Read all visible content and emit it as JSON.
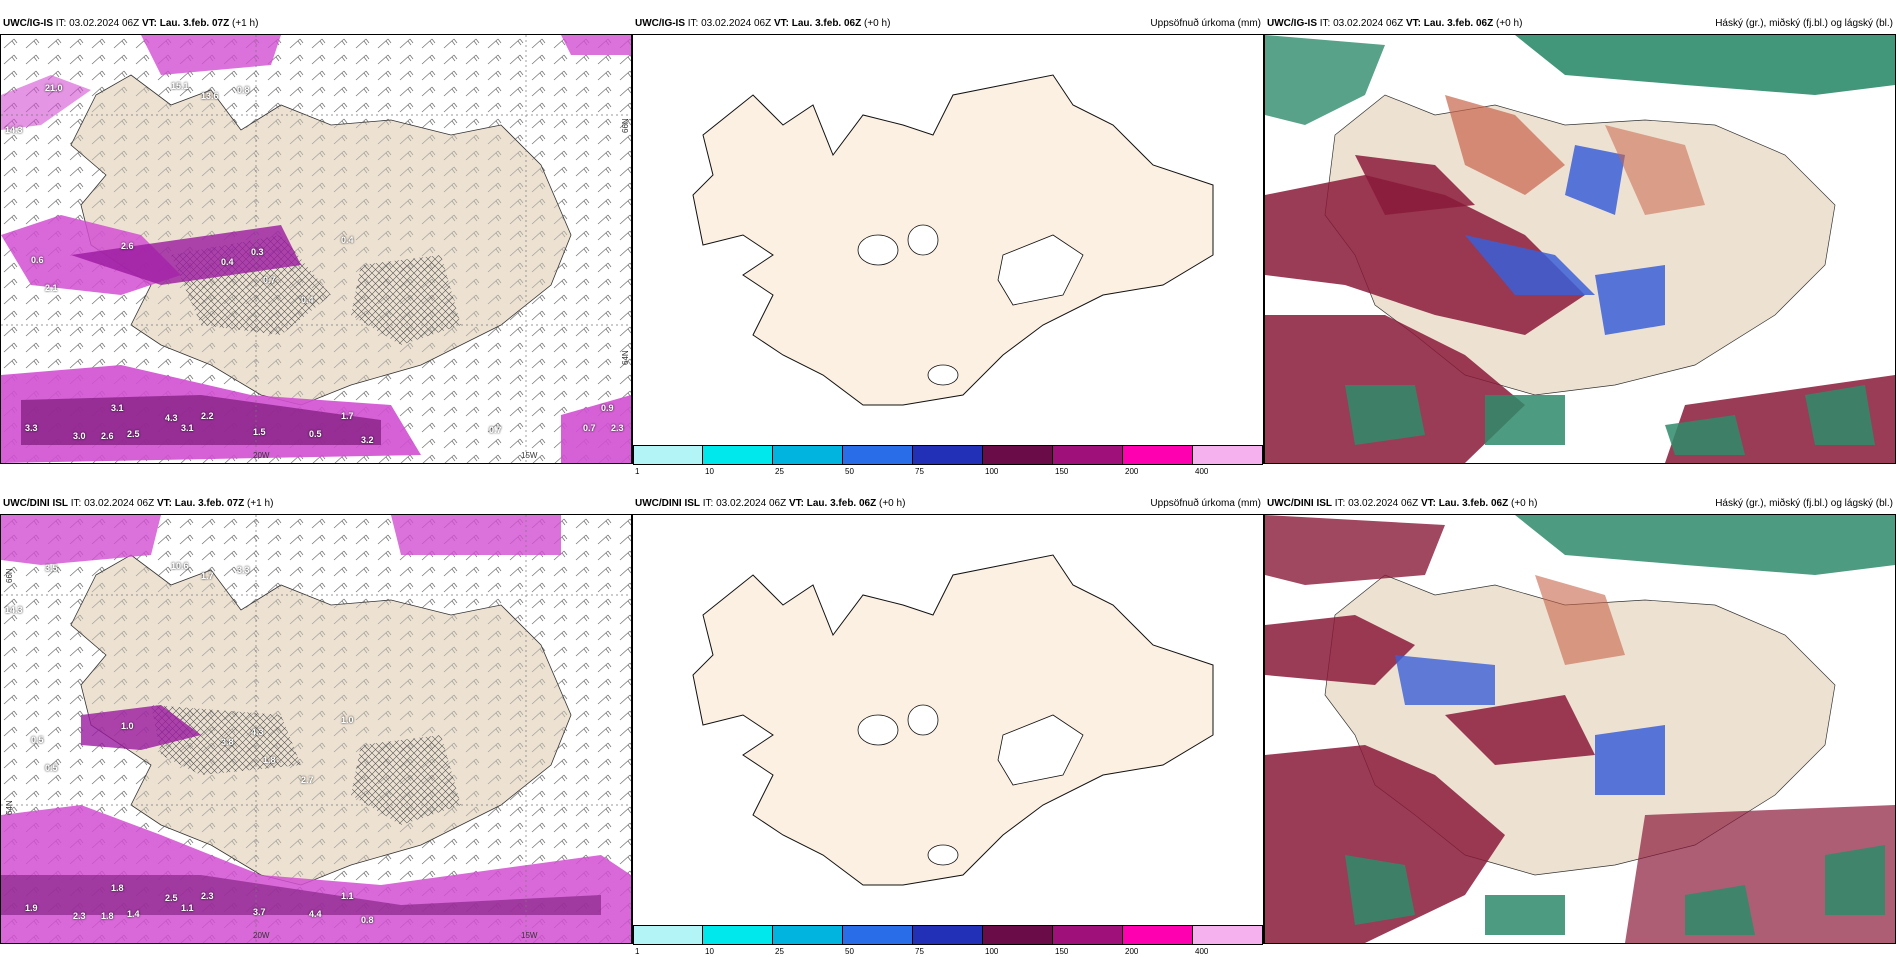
{
  "rows": [
    {
      "left": {
        "model": "UWC/IG-IS",
        "it": "IT: 03.02.2024 06Z",
        "vt_label": "VT:",
        "vt": "Lau. 3.feb. 07Z",
        "lead": "(+1 h)"
      },
      "middle": {
        "model": "UWC/IG-IS",
        "it": "IT: 03.02.2024 06Z",
        "vt_label": "VT:",
        "vt": "Lau. 3.feb. 06Z",
        "lead": "(+0 h)",
        "title_right": "Uppsöfnuð úrkoma (mm)"
      },
      "right": {
        "model": "UWC/IG-IS",
        "it": "IT: 03.02.2024 06Z",
        "vt_label": "VT:",
        "vt": "Lau. 3.feb. 06Z",
        "lead": "(+0 h)",
        "title_right": "Háský (gr.), miðský (fj.bl.) og lágský (bl.)"
      },
      "precip_labels": [
        "21.0",
        "14.3",
        "15.1",
        "13.6",
        "0.8",
        "2.1",
        "0.6",
        "2.6",
        "0.4",
        "0.3",
        "0.4",
        "0.7",
        "0.4",
        "3.1",
        "3.3",
        "3.0",
        "2.6",
        "2.5",
        "4.3",
        "3.1",
        "2.2",
        "1.5",
        "0.5",
        "1.7",
        "3.2",
        "0.7",
        "0.9",
        "0.7",
        "2.3"
      ],
      "lon_labels": [
        "20W",
        "15W"
      ],
      "lat_labels": [
        "66N",
        "64N"
      ]
    },
    {
      "left": {
        "model": "UWC/DINI ISL",
        "it": "IT: 03.02.2024 06Z",
        "vt_label": "VT:",
        "vt": "Lau. 3.feb. 07Z",
        "lead": "(+1 h)"
      },
      "middle": {
        "model": "UWC/DINI ISL",
        "it": "IT: 03.02.2024 06Z",
        "vt_label": "VT:",
        "vt": "Lau. 3.feb. 06Z",
        "lead": "(+0 h)",
        "title_right": "Uppsöfnuð úrkoma (mm)"
      },
      "right": {
        "model": "UWC/DINI ISL",
        "it": "IT: 03.02.2024 06Z",
        "vt_label": "VT:",
        "vt": "Lau. 3.feb. 06Z",
        "lead": "(+0 h)",
        "title_right": "Háský (gr.), miðský (fj.bl.) og lágský (bl.)"
      },
      "precip_labels": [
        "3.5",
        "14.3",
        "10.6",
        "1.7",
        "3.3",
        "0.5",
        "0.5",
        "1.0",
        "2.7",
        "4.3",
        "3.8",
        "1.8",
        "1.0",
        "1.8",
        "1.9",
        "2.3",
        "1.8",
        "1.4",
        "2.5",
        "1.1",
        "2.3",
        "3.7",
        "4.4",
        "1.1",
        "0.8"
      ],
      "lon_labels": [
        "20W",
        "15W"
      ],
      "lat_labels": [
        "66N",
        "64N"
      ]
    }
  ],
  "legend": {
    "colors": [
      "#b3f5f7",
      "#00e8ec",
      "#00b4e0",
      "#2a6de8",
      "#2230b8",
      "#6a0c48",
      "#a0107a",
      "#ff00b0",
      "#f5b0ee"
    ],
    "ticks": [
      "1",
      "10",
      "25",
      "50",
      "75",
      "100",
      "150",
      "200",
      "400"
    ]
  },
  "colors": {
    "land": "#ede2d2",
    "land_mid": "#fcf0e3",
    "precip": "#cc33cc",
    "precip_dark": "#7a1a7a",
    "cloud_high": "#2e8b6b",
    "cloud_mid": "#3b5fd8",
    "cloud_low": "#8a1a3a",
    "cloud_orange": "#c8644a"
  }
}
